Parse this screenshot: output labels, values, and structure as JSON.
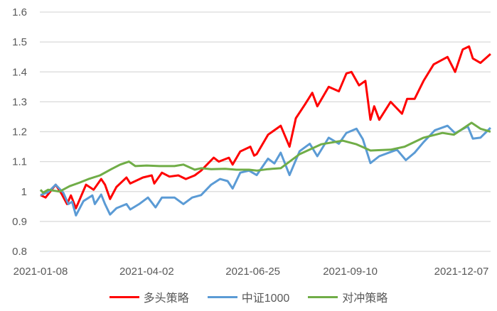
{
  "chart_data": {
    "type": "line",
    "ylim": [
      0.8,
      1.6
    ],
    "yticks": [
      "0.8",
      "0.9",
      "1",
      "1.1",
      "1.2",
      "1.3",
      "1.4",
      "1.5",
      "1.6"
    ],
    "xticks": [
      "2021-01-08",
      "2021-04-02",
      "2021-06-25",
      "2021-09-10",
      "2021-12-07"
    ],
    "grid": true,
    "legend_position": "bottom",
    "series": [
      {
        "name": "多头策略",
        "color": "#FF0000",
        "points": [
          [
            "2021-01-08",
            0.988
          ],
          [
            "2021-01-12",
            0.98
          ],
          [
            "2021-01-20",
            1.023
          ],
          [
            "2021-01-25",
            0.99
          ],
          [
            "2021-01-29",
            0.958
          ],
          [
            "2021-02-01",
            0.987
          ],
          [
            "2021-02-05",
            0.944
          ],
          [
            "2021-02-13",
            1.023
          ],
          [
            "2021-02-19",
            1.006
          ],
          [
            "2021-02-25",
            1.042
          ],
          [
            "2021-02-28",
            1.023
          ],
          [
            "2021-03-04",
            0.975
          ],
          [
            "2021-03-09",
            1.015
          ],
          [
            "2021-03-17",
            1.047
          ],
          [
            "2021-03-20",
            1.027
          ],
          [
            "2021-03-30",
            1.047
          ],
          [
            "2021-04-06",
            1.054
          ],
          [
            "2021-04-08",
            1.027
          ],
          [
            "2021-04-14",
            1.063
          ],
          [
            "2021-04-20",
            1.05
          ],
          [
            "2021-04-27",
            1.054
          ],
          [
            "2021-05-03",
            1.042
          ],
          [
            "2021-05-10",
            1.054
          ],
          [
            "2021-05-15",
            1.07
          ],
          [
            "2021-05-25",
            1.113
          ],
          [
            "2021-05-29",
            1.1
          ],
          [
            "2021-06-06",
            1.113
          ],
          [
            "2021-06-09",
            1.09
          ],
          [
            "2021-06-15",
            1.134
          ],
          [
            "2021-06-23",
            1.15
          ],
          [
            "2021-06-26",
            1.12
          ],
          [
            "2021-06-28",
            1.125
          ],
          [
            "2021-07-07",
            1.19
          ],
          [
            "2021-07-17",
            1.22
          ],
          [
            "2021-07-24",
            1.15
          ],
          [
            "2021-07-29",
            1.245
          ],
          [
            "2021-08-05",
            1.29
          ],
          [
            "2021-08-11",
            1.33
          ],
          [
            "2021-08-15",
            1.285
          ],
          [
            "2021-08-24",
            1.35
          ],
          [
            "2021-09-01",
            1.335
          ],
          [
            "2021-09-07",
            1.395
          ],
          [
            "2021-09-11",
            1.4
          ],
          [
            "2021-09-17",
            1.355
          ],
          [
            "2021-09-22",
            1.37
          ],
          [
            "2021-09-26",
            1.24
          ],
          [
            "2021-09-29",
            1.285
          ],
          [
            "2021-10-03",
            1.24
          ],
          [
            "2021-10-12",
            1.3
          ],
          [
            "2021-10-21",
            1.26
          ],
          [
            "2021-10-25",
            1.31
          ],
          [
            "2021-10-31",
            1.31
          ],
          [
            "2021-11-07",
            1.37
          ],
          [
            "2021-11-15",
            1.425
          ],
          [
            "2021-11-26",
            1.45
          ],
          [
            "2021-12-02",
            1.4
          ],
          [
            "2021-12-08",
            1.475
          ],
          [
            "2021-12-13",
            1.485
          ],
          [
            "2021-12-16",
            1.445
          ],
          [
            "2021-12-22",
            1.43
          ],
          [
            "2021-12-30",
            1.46
          ]
        ]
      },
      {
        "name": "中证1000",
        "color": "#5B9BD5",
        "points": [
          [
            "2021-01-08",
            0.988
          ],
          [
            "2021-01-14",
            0.998
          ],
          [
            "2021-01-20",
            1.023
          ],
          [
            "2021-01-26",
            0.996
          ],
          [
            "2021-01-30",
            0.958
          ],
          [
            "2021-02-02",
            0.966
          ],
          [
            "2021-02-05",
            0.92
          ],
          [
            "2021-02-11",
            0.968
          ],
          [
            "2021-02-18",
            0.987
          ],
          [
            "2021-02-20",
            0.958
          ],
          [
            "2021-02-25",
            0.99
          ],
          [
            "2021-02-28",
            0.958
          ],
          [
            "2021-03-04",
            0.923
          ],
          [
            "2021-03-09",
            0.944
          ],
          [
            "2021-03-17",
            0.958
          ],
          [
            "2021-03-20",
            0.94
          ],
          [
            "2021-03-27",
            0.958
          ],
          [
            "2021-04-03",
            0.98
          ],
          [
            "2021-04-09",
            0.947
          ],
          [
            "2021-04-14",
            0.98
          ],
          [
            "2021-04-24",
            0.98
          ],
          [
            "2021-05-01",
            0.958
          ],
          [
            "2021-05-08",
            0.98
          ],
          [
            "2021-05-15",
            0.988
          ],
          [
            "2021-05-23",
            1.023
          ],
          [
            "2021-05-30",
            1.042
          ],
          [
            "2021-06-05",
            1.035
          ],
          [
            "2021-06-09",
            1.01
          ],
          [
            "2021-06-15",
            1.063
          ],
          [
            "2021-06-22",
            1.07
          ],
          [
            "2021-06-28",
            1.055
          ],
          [
            "2021-07-07",
            1.11
          ],
          [
            "2021-07-12",
            1.094
          ],
          [
            "2021-07-17",
            1.13
          ],
          [
            "2021-07-24",
            1.055
          ],
          [
            "2021-08-01",
            1.135
          ],
          [
            "2021-08-09",
            1.16
          ],
          [
            "2021-08-15",
            1.118
          ],
          [
            "2021-08-24",
            1.18
          ],
          [
            "2021-09-01",
            1.16
          ],
          [
            "2021-09-07",
            1.196
          ],
          [
            "2021-09-15",
            1.21
          ],
          [
            "2021-09-20",
            1.175
          ],
          [
            "2021-09-26",
            1.095
          ],
          [
            "2021-10-03",
            1.118
          ],
          [
            "2021-10-17",
            1.14
          ],
          [
            "2021-10-24",
            1.105
          ],
          [
            "2021-10-31",
            1.13
          ],
          [
            "2021-11-07",
            1.165
          ],
          [
            "2021-11-16",
            1.205
          ],
          [
            "2021-11-26",
            1.22
          ],
          [
            "2021-12-02",
            1.195
          ],
          [
            "2021-12-12",
            1.218
          ],
          [
            "2021-12-16",
            1.177
          ],
          [
            "2021-12-22",
            1.18
          ],
          [
            "2021-12-30",
            1.213
          ]
        ]
      },
      {
        "name": "对冲策略",
        "color": "#70AD47",
        "points": [
          [
            "2021-01-08",
            1.006
          ],
          [
            "2021-01-10",
            0.996
          ],
          [
            "2021-01-14",
            1.006
          ],
          [
            "2021-01-23",
            1.0
          ],
          [
            "2021-01-31",
            1.018
          ],
          [
            "2021-02-08",
            1.03
          ],
          [
            "2021-02-15",
            1.042
          ],
          [
            "2021-02-24",
            1.054
          ],
          [
            "2021-03-05",
            1.075
          ],
          [
            "2021-03-12",
            1.09
          ],
          [
            "2021-03-19",
            1.1
          ],
          [
            "2021-03-24",
            1.085
          ],
          [
            "2021-04-02",
            1.087
          ],
          [
            "2021-04-12",
            1.085
          ],
          [
            "2021-04-24",
            1.085
          ],
          [
            "2021-05-01",
            1.09
          ],
          [
            "2021-05-10",
            1.073
          ],
          [
            "2021-05-15",
            1.078
          ],
          [
            "2021-05-23",
            1.075
          ],
          [
            "2021-06-03",
            1.076
          ],
          [
            "2021-06-12",
            1.073
          ],
          [
            "2021-06-22",
            1.073
          ],
          [
            "2021-06-28",
            1.07
          ],
          [
            "2021-07-07",
            1.075
          ],
          [
            "2021-07-17",
            1.078
          ],
          [
            "2021-08-01",
            1.125
          ],
          [
            "2021-08-18",
            1.158
          ],
          [
            "2021-09-04",
            1.17
          ],
          [
            "2021-09-15",
            1.158
          ],
          [
            "2021-09-26",
            1.137
          ],
          [
            "2021-10-12",
            1.14
          ],
          [
            "2021-10-23",
            1.15
          ],
          [
            "2021-11-07",
            1.18
          ],
          [
            "2021-11-22",
            1.196
          ],
          [
            "2021-12-01",
            1.19
          ],
          [
            "2021-12-15",
            1.23
          ],
          [
            "2021-12-22",
            1.21
          ],
          [
            "2021-12-30",
            1.2
          ]
        ]
      }
    ]
  }
}
